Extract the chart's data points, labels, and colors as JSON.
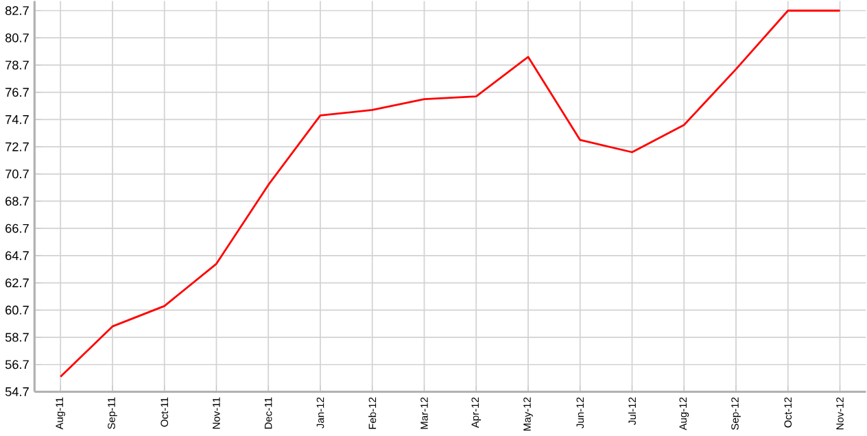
{
  "chart_data": {
    "type": "line",
    "categories": [
      "Aug-11",
      "Sep-11",
      "Oct-11",
      "Nov-11",
      "Dec-11",
      "Jan-12",
      "Feb-12",
      "Mar-12",
      "Apr-12",
      "May-12",
      "Jun-12",
      "Jul-12",
      "Aug-12",
      "Sep-12",
      "Oct-12",
      "Nov-12"
    ],
    "values": [
      55.8,
      59.5,
      61.0,
      64.1,
      69.9,
      75.0,
      75.4,
      76.2,
      76.4,
      79.3,
      73.2,
      72.3,
      74.3,
      78.4,
      82.7,
      82.7
    ],
    "color": "#ff0000",
    "ylim": [
      54.7,
      83.4
    ],
    "yticks": [
      54.7,
      56.7,
      58.7,
      60.7,
      62.7,
      64.7,
      66.7,
      68.7,
      70.7,
      72.7,
      74.7,
      76.7,
      78.7,
      80.7,
      82.7
    ],
    "grid": true,
    "marker": "none",
    "line_style": "solid"
  }
}
